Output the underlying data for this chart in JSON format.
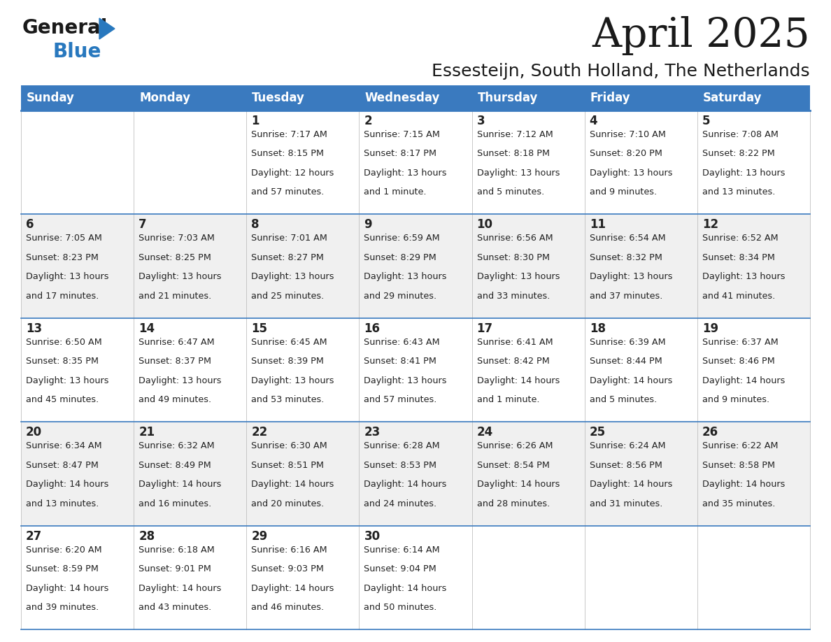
{
  "title": "April 2025",
  "subtitle": "Essesteijn, South Holland, The Netherlands",
  "header_color": "#3a7abf",
  "header_text_color": "#ffffff",
  "day_names": [
    "Sunday",
    "Monday",
    "Tuesday",
    "Wednesday",
    "Thursday",
    "Friday",
    "Saturday"
  ],
  "bg_color": "#ffffff",
  "row_alt_color": "#f0f0f0",
  "cell_text_color": "#222222",
  "border_color": "#3a7abf",
  "logo_general_color": "#1a1a1a",
  "logo_blue_color": "#2878be",
  "logo_triangle_color": "#2878be",
  "weeks": [
    [
      {
        "day": null,
        "sunrise": null,
        "sunset": null,
        "daylight": null
      },
      {
        "day": null,
        "sunrise": null,
        "sunset": null,
        "daylight": null
      },
      {
        "day": 1,
        "sunrise": "7:17 AM",
        "sunset": "8:15 PM",
        "daylight": "12 hours\nand 57 minutes."
      },
      {
        "day": 2,
        "sunrise": "7:15 AM",
        "sunset": "8:17 PM",
        "daylight": "13 hours\nand 1 minute."
      },
      {
        "day": 3,
        "sunrise": "7:12 AM",
        "sunset": "8:18 PM",
        "daylight": "13 hours\nand 5 minutes."
      },
      {
        "day": 4,
        "sunrise": "7:10 AM",
        "sunset": "8:20 PM",
        "daylight": "13 hours\nand 9 minutes."
      },
      {
        "day": 5,
        "sunrise": "7:08 AM",
        "sunset": "8:22 PM",
        "daylight": "13 hours\nand 13 minutes."
      }
    ],
    [
      {
        "day": 6,
        "sunrise": "7:05 AM",
        "sunset": "8:23 PM",
        "daylight": "13 hours\nand 17 minutes."
      },
      {
        "day": 7,
        "sunrise": "7:03 AM",
        "sunset": "8:25 PM",
        "daylight": "13 hours\nand 21 minutes."
      },
      {
        "day": 8,
        "sunrise": "7:01 AM",
        "sunset": "8:27 PM",
        "daylight": "13 hours\nand 25 minutes."
      },
      {
        "day": 9,
        "sunrise": "6:59 AM",
        "sunset": "8:29 PM",
        "daylight": "13 hours\nand 29 minutes."
      },
      {
        "day": 10,
        "sunrise": "6:56 AM",
        "sunset": "8:30 PM",
        "daylight": "13 hours\nand 33 minutes."
      },
      {
        "day": 11,
        "sunrise": "6:54 AM",
        "sunset": "8:32 PM",
        "daylight": "13 hours\nand 37 minutes."
      },
      {
        "day": 12,
        "sunrise": "6:52 AM",
        "sunset": "8:34 PM",
        "daylight": "13 hours\nand 41 minutes."
      }
    ],
    [
      {
        "day": 13,
        "sunrise": "6:50 AM",
        "sunset": "8:35 PM",
        "daylight": "13 hours\nand 45 minutes."
      },
      {
        "day": 14,
        "sunrise": "6:47 AM",
        "sunset": "8:37 PM",
        "daylight": "13 hours\nand 49 minutes."
      },
      {
        "day": 15,
        "sunrise": "6:45 AM",
        "sunset": "8:39 PM",
        "daylight": "13 hours\nand 53 minutes."
      },
      {
        "day": 16,
        "sunrise": "6:43 AM",
        "sunset": "8:41 PM",
        "daylight": "13 hours\nand 57 minutes."
      },
      {
        "day": 17,
        "sunrise": "6:41 AM",
        "sunset": "8:42 PM",
        "daylight": "14 hours\nand 1 minute."
      },
      {
        "day": 18,
        "sunrise": "6:39 AM",
        "sunset": "8:44 PM",
        "daylight": "14 hours\nand 5 minutes."
      },
      {
        "day": 19,
        "sunrise": "6:37 AM",
        "sunset": "8:46 PM",
        "daylight": "14 hours\nand 9 minutes."
      }
    ],
    [
      {
        "day": 20,
        "sunrise": "6:34 AM",
        "sunset": "8:47 PM",
        "daylight": "14 hours\nand 13 minutes."
      },
      {
        "day": 21,
        "sunrise": "6:32 AM",
        "sunset": "8:49 PM",
        "daylight": "14 hours\nand 16 minutes."
      },
      {
        "day": 22,
        "sunrise": "6:30 AM",
        "sunset": "8:51 PM",
        "daylight": "14 hours\nand 20 minutes."
      },
      {
        "day": 23,
        "sunrise": "6:28 AM",
        "sunset": "8:53 PM",
        "daylight": "14 hours\nand 24 minutes."
      },
      {
        "day": 24,
        "sunrise": "6:26 AM",
        "sunset": "8:54 PM",
        "daylight": "14 hours\nand 28 minutes."
      },
      {
        "day": 25,
        "sunrise": "6:24 AM",
        "sunset": "8:56 PM",
        "daylight": "14 hours\nand 31 minutes."
      },
      {
        "day": 26,
        "sunrise": "6:22 AM",
        "sunset": "8:58 PM",
        "daylight": "14 hours\nand 35 minutes."
      }
    ],
    [
      {
        "day": 27,
        "sunrise": "6:20 AM",
        "sunset": "8:59 PM",
        "daylight": "14 hours\nand 39 minutes."
      },
      {
        "day": 28,
        "sunrise": "6:18 AM",
        "sunset": "9:01 PM",
        "daylight": "14 hours\nand 43 minutes."
      },
      {
        "day": 29,
        "sunrise": "6:16 AM",
        "sunset": "9:03 PM",
        "daylight": "14 hours\nand 46 minutes."
      },
      {
        "day": 30,
        "sunrise": "6:14 AM",
        "sunset": "9:04 PM",
        "daylight": "14 hours\nand 50 minutes."
      },
      {
        "day": null,
        "sunrise": null,
        "sunset": null,
        "daylight": null
      },
      {
        "day": null,
        "sunrise": null,
        "sunset": null,
        "daylight": null
      },
      {
        "day": null,
        "sunrise": null,
        "sunset": null,
        "daylight": null
      }
    ]
  ]
}
